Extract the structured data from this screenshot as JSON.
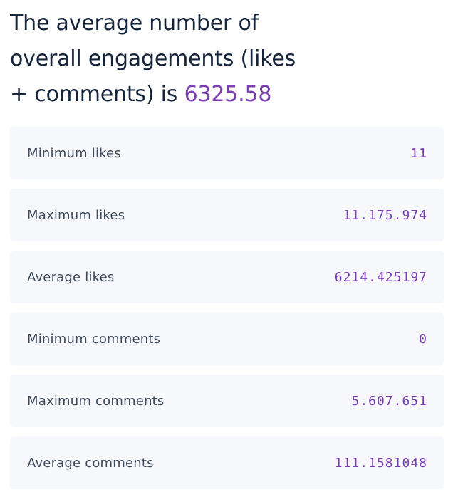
{
  "headline": {
    "text_before": "The average number of overall engagements (likes + comments) is ",
    "value": "6325.58"
  },
  "stats": [
    {
      "label": "Minimum likes",
      "value": "11"
    },
    {
      "label": "Maximum likes",
      "value": "11.175.974"
    },
    {
      "label": "Average likes",
      "value": "6214.425197"
    },
    {
      "label": "Minimum comments",
      "value": "0"
    },
    {
      "label": "Maximum comments",
      "value": "5.607.651"
    },
    {
      "label": "Average comments",
      "value": "111.1581048"
    }
  ],
  "colors": {
    "accent": "#7b3fb3",
    "heading": "#14243a",
    "label": "#3c4a5c",
    "card_background": "#f7f8fb"
  }
}
